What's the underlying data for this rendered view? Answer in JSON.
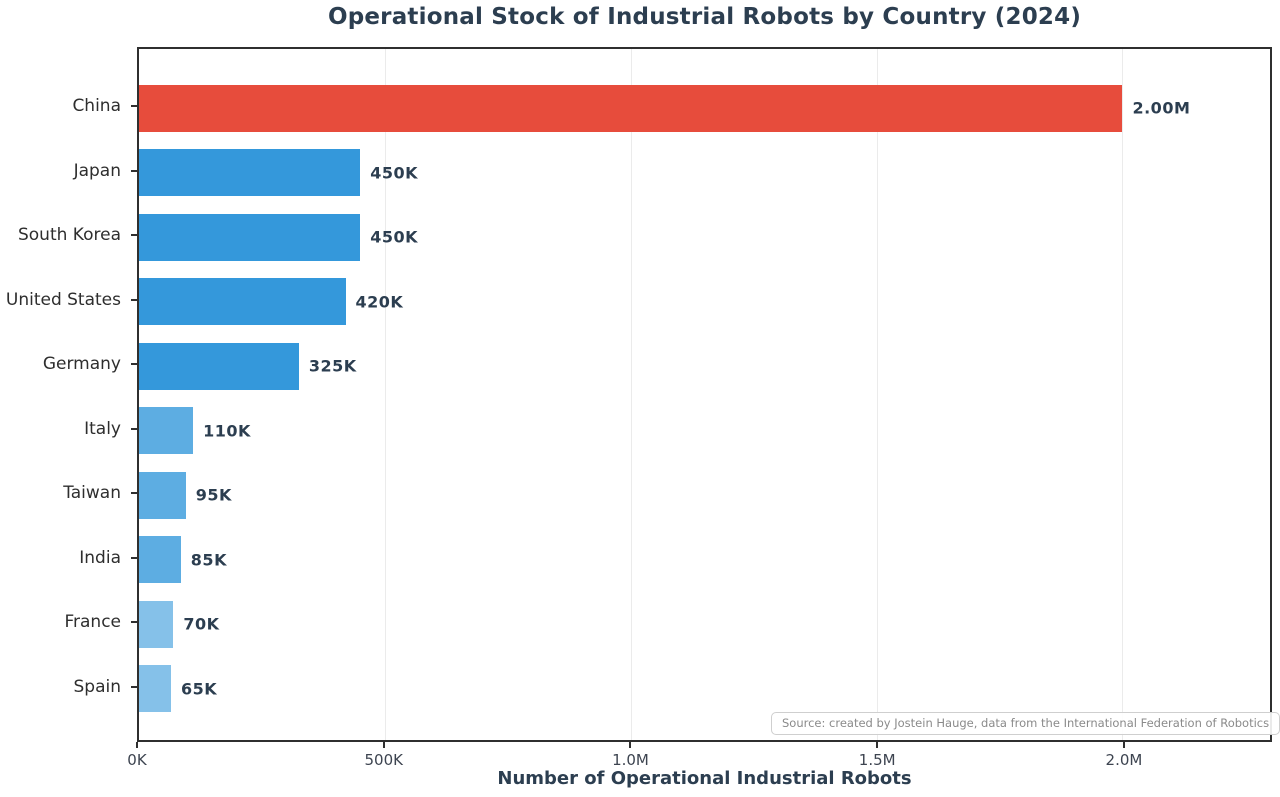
{
  "chart_data": {
    "type": "bar",
    "orientation": "horizontal",
    "title": "Operational Stock of Industrial Robots by Country (2024)",
    "xlabel": "Number of Operational Industrial Robots",
    "ylabel": "",
    "categories": [
      "China",
      "Japan",
      "South Korea",
      "United States",
      "Germany",
      "Italy",
      "Taiwan",
      "India",
      "France",
      "Spain"
    ],
    "values": [
      2000000,
      450000,
      450000,
      420000,
      325000,
      110000,
      95000,
      85000,
      70000,
      65000
    ],
    "value_labels": [
      "2.00M",
      "450K",
      "450K",
      "420K",
      "325K",
      "110K",
      "95K",
      "85K",
      "70K",
      "65K"
    ],
    "bar_colors": [
      "#e74c3c",
      "#3498db",
      "#3498db",
      "#3498db",
      "#3498db",
      "#5dade2",
      "#5dade2",
      "#5dade2",
      "#85c1e9",
      "#85c1e9"
    ],
    "xlim": [
      0,
      2300000
    ],
    "xticks": [
      {
        "value": 0,
        "label": "0K"
      },
      {
        "value": 500000,
        "label": "500K"
      },
      {
        "value": 1000000,
        "label": "1.0M"
      },
      {
        "value": 1500000,
        "label": "1.5M"
      },
      {
        "value": 2000000,
        "label": "2.0M"
      }
    ],
    "grid": "vertical-light",
    "legend": "none",
    "source_note": "Source: created by Jostein Hauge, data from the International Federation of Robotics"
  },
  "colors": {
    "title": "#2c3e50",
    "axis_label": "#2c3e50",
    "value_label": "#2c3e50",
    "category_label": "#2e2e2e",
    "tick_label": "#3d4450",
    "frame": "#2f2f2f",
    "gridline": "#ebebeb",
    "tick_mark": "#2f2f2f",
    "source_text": "#8a8a8a",
    "source_border": "#cfcfcf"
  }
}
